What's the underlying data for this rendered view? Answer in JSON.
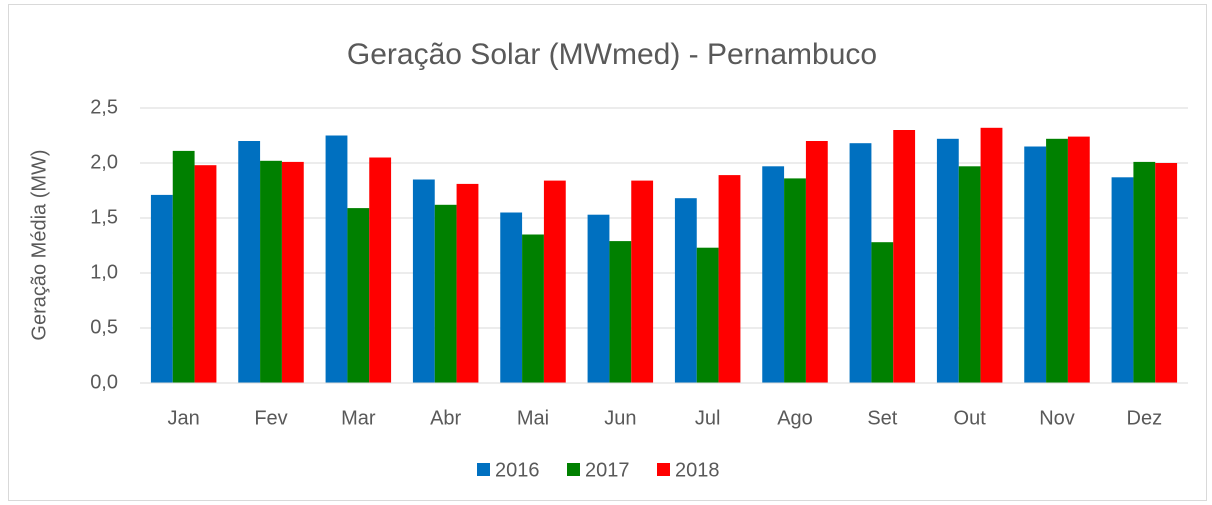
{
  "chart_data": {
    "type": "bar",
    "title": "Geração Solar (MWmed) - Pernambuco",
    "y_label": "Geração Média (MW)",
    "categories": [
      "Jan",
      "Fev",
      "Mar",
      "Abr",
      "Mai",
      "Jun",
      "Jul",
      "Ago",
      "Set",
      "Out",
      "Nov",
      "Dez"
    ],
    "series": [
      {
        "name": "2016",
        "color": "#0070c0",
        "values": [
          1.71,
          2.2,
          2.25,
          1.85,
          1.55,
          1.53,
          1.68,
          1.97,
          2.18,
          2.22,
          2.15,
          1.87
        ]
      },
      {
        "name": "2017",
        "color": "#008000",
        "values": [
          2.11,
          2.02,
          1.59,
          1.62,
          1.35,
          1.29,
          1.23,
          1.86,
          1.28,
          1.97,
          2.22,
          2.01
        ]
      },
      {
        "name": "2018",
        "color": "#ff0000",
        "values": [
          1.98,
          2.01,
          2.05,
          1.81,
          1.84,
          1.84,
          1.89,
          2.2,
          2.3,
          2.32,
          2.24,
          2.0
        ]
      }
    ],
    "ylim": [
      0,
      2.5
    ],
    "yticks": [
      {
        "value": 0,
        "label": "0,0"
      },
      {
        "value": 0.5,
        "label": "0,5"
      },
      {
        "value": 1,
        "label": "1,0"
      },
      {
        "value": 1.5,
        "label": "1,5"
      },
      {
        "value": 2,
        "label": "2,0"
      },
      {
        "value": 2.5,
        "label": "2,5"
      }
    ],
    "grid": true,
    "legend": "bottom"
  }
}
